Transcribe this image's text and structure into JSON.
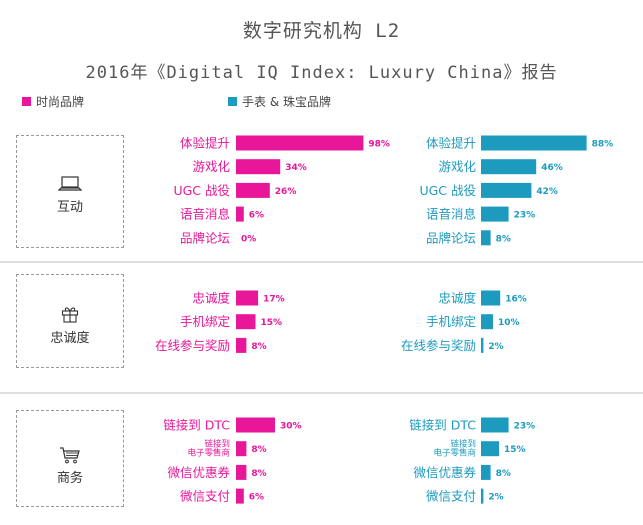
{
  "header": {
    "title": "数字研究机构 L2",
    "subtitle": "2016年《Digital IQ Index: Luxury China》报告"
  },
  "colors": {
    "fashion": "#e8179a",
    "watches": "#1d9bbf",
    "divider": "#bcbcbc"
  },
  "chart_data": {
    "type": "bar",
    "unit": "%",
    "series": [
      {
        "name": "时尚品牌",
        "color": "#e8179a"
      },
      {
        "name": "手表 & 珠宝品牌",
        "color": "#1d9bbf"
      }
    ],
    "groups": [
      {
        "name": "互动",
        "icon": "laptop-icon",
        "rows": [
          {
            "label": "体验提升",
            "fashion": 98,
            "watches": 88
          },
          {
            "label": "游戏化",
            "fashion": 34,
            "watches": 46
          },
          {
            "label": "UGC 战役",
            "fashion": 26,
            "watches": 42
          },
          {
            "label": "语音消息",
            "fashion": 6,
            "watches": 23
          },
          {
            "label": "品牌论坛",
            "fashion": 0,
            "watches": 8
          }
        ]
      },
      {
        "name": "忠诚度",
        "icon": "gift-icon",
        "rows": [
          {
            "label": "忠诚度",
            "fashion": 17,
            "watches": 16
          },
          {
            "label": "手机绑定",
            "fashion": 15,
            "watches": 10
          },
          {
            "label": "在线参与奖励",
            "fashion": 8,
            "watches": 2
          }
        ]
      },
      {
        "name": "商务",
        "icon": "shopping-cart-icon",
        "rows": [
          {
            "label": "链接到 DTC",
            "fashion": 30,
            "watches": 23
          },
          {
            "label": "链接到 电子零售商",
            "label_lines": [
              "链接到",
              "电子零售商"
            ],
            "fashion": 8,
            "watches": 15
          },
          {
            "label": "微信优惠券",
            "fashion": 8,
            "watches": 8
          },
          {
            "label": "微信支付",
            "fashion": 6,
            "watches": 2
          }
        ]
      }
    ]
  }
}
